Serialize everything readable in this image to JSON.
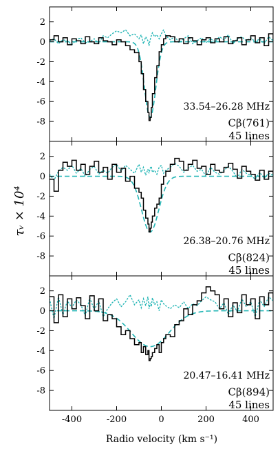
{
  "chart_data": {
    "type": "line",
    "xlabel": "Radio velocity (km s⁻¹)",
    "ylabel": "τᵥ × 10⁴",
    "xlim": [
      -500,
      500
    ],
    "ylim": [
      -10,
      3.5
    ],
    "x_ticks": [
      -400,
      -200,
      0,
      200,
      400
    ],
    "x_tick_labels": [
      "-400",
      "-200",
      "0",
      "200",
      "400"
    ],
    "y_ticks": [
      -8,
      -6,
      -4,
      -2,
      0,
      2
    ],
    "y_tick_labels": [
      "-8",
      "-6",
      "-4",
      "-2",
      "0",
      "2"
    ],
    "grid": false,
    "series_styles": {
      "spectrum": {
        "color": "#000000",
        "style": "steps"
      },
      "fit": {
        "color": "#22b5b5",
        "style": "dashed"
      },
      "residual": {
        "color": "#22b5b5",
        "style": "dotted"
      }
    },
    "panels": [
      {
        "freq_label": "33.54–26.28 MHz",
        "transition": "Cβ(761)",
        "n_lines": "45 lines",
        "fit": {
          "center": -50,
          "depth": -7.6,
          "fwhm": 60
        },
        "spectrum_x": [
          -500,
          -480,
          -460,
          -440,
          -420,
          -400,
          -380,
          -360,
          -340,
          -320,
          -300,
          -280,
          -260,
          -240,
          -220,
          -200,
          -180,
          -160,
          -140,
          -120,
          -100,
          -90,
          -80,
          -70,
          -60,
          -55,
          -50,
          -45,
          -40,
          -30,
          -20,
          -10,
          0,
          10,
          20,
          40,
          60,
          80,
          100,
          120,
          140,
          160,
          180,
          200,
          220,
          240,
          260,
          280,
          300,
          320,
          340,
          360,
          380,
          400,
          420,
          440,
          460,
          480,
          500
        ],
        "spectrum_y": [
          0.2,
          0.6,
          0.0,
          0.4,
          -0.3,
          0.3,
          0.1,
          -0.2,
          0.5,
          0.0,
          -0.2,
          0.4,
          0.1,
          0.0,
          -0.3,
          0.2,
          0.0,
          -0.4,
          -0.8,
          -1.1,
          -2.0,
          -3.2,
          -4.8,
          -6.0,
          -7.1,
          -7.9,
          -7.6,
          -6.6,
          -5.2,
          -3.6,
          -2.4,
          -1.0,
          -0.3,
          0.3,
          0.6,
          0.5,
          0.0,
          0.3,
          -0.2,
          0.4,
          0.1,
          -0.3,
          0.2,
          0.4,
          -0.1,
          0.3,
          0.0,
          0.5,
          -0.2,
          0.1,
          0.4,
          -0.3,
          0.2,
          0.6,
          -0.1,
          0.4,
          -0.4,
          0.8,
          0.2
        ],
        "residual_y": [
          0.1,
          0.3,
          -0.2,
          0.2,
          0.1,
          -0.3,
          0.2,
          0.4,
          -0.1,
          0.0,
          0.3,
          -0.2,
          0.6,
          0.4,
          0.8,
          1.1,
          0.9,
          1.2,
          0.6,
          0.8,
          0.3,
          0.7,
          -0.2,
          0.5,
          0.1,
          -0.4,
          0.2,
          0.6,
          0.9,
          0.5,
          0.7,
          0.3,
          0.8,
          1.2,
          0.6,
          0.2,
          0.5,
          -0.1,
          0.3,
          0.6,
          -0.2,
          0.1,
          0.4,
          -0.1,
          0.3,
          0.0,
          0.5,
          0.2,
          0.7,
          -0.2,
          0.3,
          0.5,
          0.1,
          0.4,
          0.0,
          0.3,
          -0.2,
          0.5,
          0.1
        ]
      },
      {
        "freq_label": "26.38–20.76 MHz",
        "transition": "Cβ(824)",
        "n_lines": "45 lines",
        "fit": {
          "center": -50,
          "depth": -5.6,
          "fwhm": 90
        },
        "spectrum_x": [
          -500,
          -480,
          -460,
          -440,
          -420,
          -400,
          -380,
          -360,
          -340,
          -320,
          -300,
          -280,
          -260,
          -240,
          -220,
          -200,
          -180,
          -160,
          -140,
          -120,
          -100,
          -90,
          -80,
          -70,
          -60,
          -55,
          -50,
          -45,
          -40,
          -30,
          -20,
          -10,
          0,
          10,
          20,
          40,
          60,
          80,
          100,
          120,
          140,
          160,
          180,
          200,
          220,
          240,
          260,
          280,
          300,
          320,
          340,
          360,
          380,
          400,
          420,
          440,
          460,
          480,
          500
        ],
        "spectrum_y": [
          -0.3,
          -1.5,
          0.6,
          1.4,
          1.0,
          1.6,
          0.6,
          1.2,
          0.2,
          1.0,
          1.5,
          0.4,
          0.9,
          -0.3,
          1.2,
          0.4,
          0.8,
          -0.5,
          0.0,
          -1.2,
          -1.6,
          -2.2,
          -3.4,
          -4.2,
          -4.8,
          -5.6,
          -5.2,
          -4.6,
          -4.0,
          -3.2,
          -2.8,
          -2.2,
          -0.8,
          0.0,
          0.5,
          1.2,
          1.8,
          1.5,
          0.6,
          1.2,
          1.6,
          0.8,
          1.0,
          0.2,
          1.2,
          0.6,
          0.4,
          0.9,
          1.3,
          0.7,
          -0.2,
          1.0,
          0.5,
          0.2,
          -0.4,
          0.6,
          -0.3,
          0.5,
          0.2
        ],
        "residual_y": [
          0.2,
          -0.4,
          0.5,
          0.9,
          0.6,
          1.1,
          0.3,
          0.8,
          0.0,
          0.7,
          1.0,
          0.2,
          0.6,
          0.3,
          0.9,
          1.2,
          0.5,
          1.1,
          0.7,
          0.3,
          1.2,
          0.4,
          0.9,
          0.1,
          0.7,
          0.3,
          0.8,
          1.0,
          0.4,
          0.6,
          0.2,
          0.9,
          1.1,
          0.3,
          0.6,
          0.9,
          1.3,
          1.0,
          0.4,
          0.8,
          1.1,
          0.5,
          0.7,
          0.0,
          0.9,
          0.4,
          0.2,
          0.6,
          1.0,
          0.5,
          -0.2,
          0.7,
          0.3,
          0.1,
          -0.3,
          0.4,
          -0.2,
          0.3,
          0.1
        ]
      },
      {
        "freq_label": "20.47–16.41 MHz",
        "transition": "Cβ(894)",
        "n_lines": "45 lines",
        "fit": {
          "center": -50,
          "depth": -3.6,
          "fwhm": 200
        },
        "spectrum_x": [
          -500,
          -480,
          -460,
          -440,
          -420,
          -400,
          -380,
          -360,
          -340,
          -320,
          -300,
          -280,
          -260,
          -240,
          -220,
          -200,
          -180,
          -160,
          -140,
          -120,
          -100,
          -90,
          -80,
          -70,
          -60,
          -55,
          -50,
          -45,
          -40,
          -30,
          -20,
          -10,
          0,
          10,
          20,
          40,
          60,
          80,
          100,
          120,
          140,
          160,
          180,
          200,
          220,
          240,
          260,
          280,
          300,
          320,
          340,
          360,
          380,
          400,
          420,
          440,
          460,
          480,
          500
        ],
        "spectrum_y": [
          1.4,
          -1.2,
          1.6,
          -0.6,
          1.2,
          0.2,
          1.3,
          0.5,
          -0.8,
          1.5,
          0.0,
          1.2,
          -1.0,
          -0.4,
          -0.8,
          -1.6,
          -2.4,
          -2.0,
          -2.8,
          -3.4,
          -3.2,
          -4.2,
          -3.6,
          -4.4,
          -4.0,
          -5.0,
          -4.8,
          -4.6,
          -4.2,
          -3.8,
          -3.4,
          -4.2,
          -3.2,
          -2.8,
          -2.4,
          -2.6,
          -1.4,
          -1.0,
          0.2,
          -0.4,
          0.6,
          1.0,
          1.8,
          2.4,
          2.0,
          1.6,
          0.2,
          1.2,
          -0.6,
          0.8,
          -0.2,
          1.6,
          0.6,
          1.2,
          -0.8,
          1.4,
          0.6,
          1.8,
          1.2
        ],
        "residual_y": [
          1.2,
          -0.8,
          1.4,
          -0.4,
          1.0,
          0.3,
          1.1,
          0.6,
          -0.5,
          1.3,
          0.1,
          1.0,
          -0.6,
          0.2,
          0.8,
          1.2,
          0.4,
          0.9,
          1.6,
          0.6,
          1.1,
          0.3,
          1.2,
          0.5,
          1.4,
          0.2,
          0.8,
          0.4,
          1.3,
          0.6,
          0.9,
          0.0,
          1.1,
          0.7,
          0.5,
          0.2,
          0.6,
          0.3,
          0.9,
          0.2,
          0.7,
          0.5,
          1.0,
          1.4,
          1.1,
          0.9,
          0.2,
          0.8,
          -0.4,
          0.6,
          -0.1,
          1.2,
          0.4,
          0.9,
          -0.6,
          1.1,
          0.4,
          1.4,
          1.0
        ]
      }
    ]
  }
}
